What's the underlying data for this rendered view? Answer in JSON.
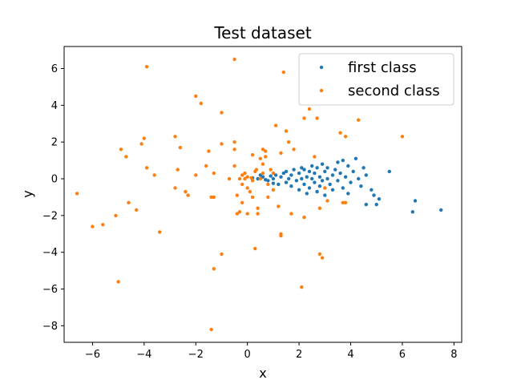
{
  "chart_data": {
    "type": "scatter",
    "title": "Test dataset",
    "xlabel": "x",
    "ylabel": "y",
    "xlim": [
      -7.1,
      8.3
    ],
    "ylim": [
      -8.9,
      7.2
    ],
    "xticks": [
      -6,
      -4,
      -2,
      0,
      2,
      4,
      6,
      8
    ],
    "yticks": [
      -8,
      -6,
      -4,
      -2,
      0,
      2,
      4,
      6
    ],
    "xtick_labels": [
      "−6",
      "−4",
      "−2",
      "0",
      "2",
      "4",
      "6",
      "8"
    ],
    "ytick_labels": [
      "−8",
      "−6",
      "−4",
      "−2",
      "0",
      "2",
      "4",
      "6"
    ],
    "grid": false,
    "legend_position": "upper right",
    "series": [
      {
        "name": "first class",
        "color": "#1f77b4",
        "points": [
          [
            0.2,
            0.05
          ],
          [
            0.4,
            0.0
          ],
          [
            0.6,
            0.1
          ],
          [
            0.8,
            -0.1
          ],
          [
            0.9,
            0.15
          ],
          [
            1.0,
            0.0
          ],
          [
            1.1,
            0.2
          ],
          [
            1.2,
            -0.3
          ],
          [
            1.3,
            0.1
          ],
          [
            1.4,
            0.3
          ],
          [
            1.5,
            -0.2
          ],
          [
            1.5,
            0.4
          ],
          [
            1.6,
            0.0
          ],
          [
            1.7,
            0.2
          ],
          [
            1.7,
            -0.4
          ],
          [
            1.8,
            0.5
          ],
          [
            1.9,
            -0.1
          ],
          [
            2.0,
            0.3
          ],
          [
            2.0,
            -0.6
          ],
          [
            2.1,
            0.0
          ],
          [
            2.2,
            0.5
          ],
          [
            2.2,
            -0.3
          ],
          [
            2.3,
            0.1
          ],
          [
            2.3,
            -0.8
          ],
          [
            2.4,
            0.4
          ],
          [
            2.4,
            -0.5
          ],
          [
            2.5,
            0.0
          ],
          [
            2.5,
            0.7
          ],
          [
            2.6,
            -0.2
          ],
          [
            2.6,
            0.3
          ],
          [
            2.7,
            -0.7
          ],
          [
            2.7,
            0.6
          ],
          [
            2.8,
            0.1
          ],
          [
            2.8,
            -0.4
          ],
          [
            2.9,
            0.8
          ],
          [
            2.9,
            -0.1
          ],
          [
            3.0,
            0.4
          ],
          [
            3.0,
            -0.9
          ],
          [
            3.1,
            0.0
          ],
          [
            3.1,
            0.6
          ],
          [
            3.2,
            -0.3
          ],
          [
            3.3,
            0.2
          ],
          [
            3.3,
            -0.6
          ],
          [
            3.4,
            0.5
          ],
          [
            3.5,
            -0.1
          ],
          [
            3.5,
            0.9
          ],
          [
            3.6,
            0.3
          ],
          [
            3.7,
            -0.5
          ],
          [
            3.7,
            1.0
          ],
          [
            3.8,
            0.1
          ],
          [
            3.9,
            0.7
          ],
          [
            4.0,
            -0.2
          ],
          [
            4.1,
            0.4
          ],
          [
            4.2,
            1.1
          ],
          [
            4.3,
            0.0
          ],
          [
            4.4,
            -0.4
          ],
          [
            4.5,
            0.6
          ],
          [
            4.6,
            0.2
          ],
          [
            4.6,
            -1.4
          ],
          [
            4.8,
            -0.6
          ],
          [
            4.9,
            -0.9
          ],
          [
            5.0,
            -1.4
          ],
          [
            5.1,
            -1.1
          ],
          [
            5.5,
            0.4
          ],
          [
            6.4,
            -1.8
          ],
          [
            6.5,
            -1.2
          ],
          [
            7.5,
            -1.7
          ],
          [
            0.5,
            0.2
          ],
          [
            0.7,
            -0.05
          ],
          [
            1.0,
            -0.25
          ],
          [
            2.1,
            0.6
          ],
          [
            3.9,
            -0.8
          ]
        ]
      },
      {
        "name": "second class",
        "color": "#ff7f0e",
        "points": [
          [
            -6.6,
            -0.8
          ],
          [
            -6.0,
            -2.6
          ],
          [
            -5.6,
            -2.5
          ],
          [
            -5.1,
            -2.0
          ],
          [
            -5.0,
            -5.6
          ],
          [
            -4.9,
            1.6
          ],
          [
            -4.7,
            1.2
          ],
          [
            -4.6,
            -1.3
          ],
          [
            -4.3,
            -1.7
          ],
          [
            -4.1,
            1.9
          ],
          [
            -4.0,
            2.2
          ],
          [
            -3.9,
            6.1
          ],
          [
            -3.9,
            0.6
          ],
          [
            -3.6,
            0.2
          ],
          [
            -3.4,
            -2.9
          ],
          [
            -2.8,
            2.3
          ],
          [
            -2.8,
            -0.5
          ],
          [
            -2.7,
            0.5
          ],
          [
            -2.6,
            1.7
          ],
          [
            -2.4,
            -0.7
          ],
          [
            -2.3,
            -0.9
          ],
          [
            -2.0,
            4.5
          ],
          [
            -2.0,
            0.2
          ],
          [
            -1.8,
            4.1
          ],
          [
            -1.6,
            0.7
          ],
          [
            -1.5,
            1.5
          ],
          [
            -1.4,
            -1.0
          ],
          [
            -1.3,
            -1.0
          ],
          [
            -1.3,
            0.3
          ],
          [
            -1.3,
            -4.9
          ],
          [
            -1.4,
            -8.2
          ],
          [
            -1.0,
            1.9
          ],
          [
            -1.0,
            3.6
          ],
          [
            -1.0,
            -4.1
          ],
          [
            -0.7,
            0.0
          ],
          [
            -0.5,
            6.5
          ],
          [
            -0.5,
            2.0
          ],
          [
            -0.5,
            1.6
          ],
          [
            -0.5,
            0.7
          ],
          [
            -0.4,
            -0.9
          ],
          [
            -0.4,
            -1.9
          ],
          [
            -0.3,
            -1.8
          ],
          [
            -0.2,
            -1.3
          ],
          [
            -0.2,
            0.2
          ],
          [
            -0.2,
            -0.3
          ],
          [
            -0.1,
            0.0
          ],
          [
            0.0,
            -0.5
          ],
          [
            0.0,
            0.1
          ],
          [
            0.0,
            -1.9
          ],
          [
            0.1,
            -0.7
          ],
          [
            0.2,
            1.3
          ],
          [
            0.2,
            -0.1
          ],
          [
            0.3,
            -3.8
          ],
          [
            0.3,
            0.4
          ],
          [
            0.4,
            -1.6
          ],
          [
            0.4,
            -1.9
          ],
          [
            0.5,
            0.0
          ],
          [
            0.5,
            1.1
          ],
          [
            0.6,
            1.6
          ],
          [
            0.6,
            0.8
          ],
          [
            0.7,
            1.2
          ],
          [
            0.7,
            1.5
          ],
          [
            0.8,
            -1.0
          ],
          [
            0.9,
            0.5
          ],
          [
            1.0,
            -0.6
          ],
          [
            1.1,
            2.9
          ],
          [
            1.2,
            -1.5
          ],
          [
            1.3,
            1.4
          ],
          [
            1.3,
            -3.0
          ],
          [
            1.3,
            -3.1
          ],
          [
            1.4,
            5.8
          ],
          [
            1.5,
            2.6
          ],
          [
            1.6,
            2.0
          ],
          [
            1.7,
            -1.9
          ],
          [
            1.8,
            1.6
          ],
          [
            2.1,
            -5.9
          ],
          [
            2.2,
            3.3
          ],
          [
            2.2,
            -2.1
          ],
          [
            2.4,
            3.8
          ],
          [
            2.6,
            1.2
          ],
          [
            2.7,
            3.3
          ],
          [
            2.8,
            -1.6
          ],
          [
            2.8,
            -4.1
          ],
          [
            2.9,
            -4.3
          ],
          [
            3.0,
            -0.5
          ],
          [
            3.1,
            -1.2
          ],
          [
            3.6,
            2.5
          ],
          [
            3.7,
            -1.3
          ],
          [
            3.8,
            -1.3
          ],
          [
            3.8,
            2.3
          ],
          [
            4.3,
            3.2
          ],
          [
            6.0,
            2.3
          ],
          [
            0.2,
            -1.0
          ],
          [
            -0.3,
            0.0
          ],
          [
            0.15,
            0.05
          ],
          [
            1.0,
            0.3
          ],
          [
            0.6,
            0.3
          ],
          [
            0.35,
            0.5
          ],
          [
            -0.1,
            0.3
          ],
          [
            0.8,
            -0.3
          ]
        ]
      }
    ]
  }
}
